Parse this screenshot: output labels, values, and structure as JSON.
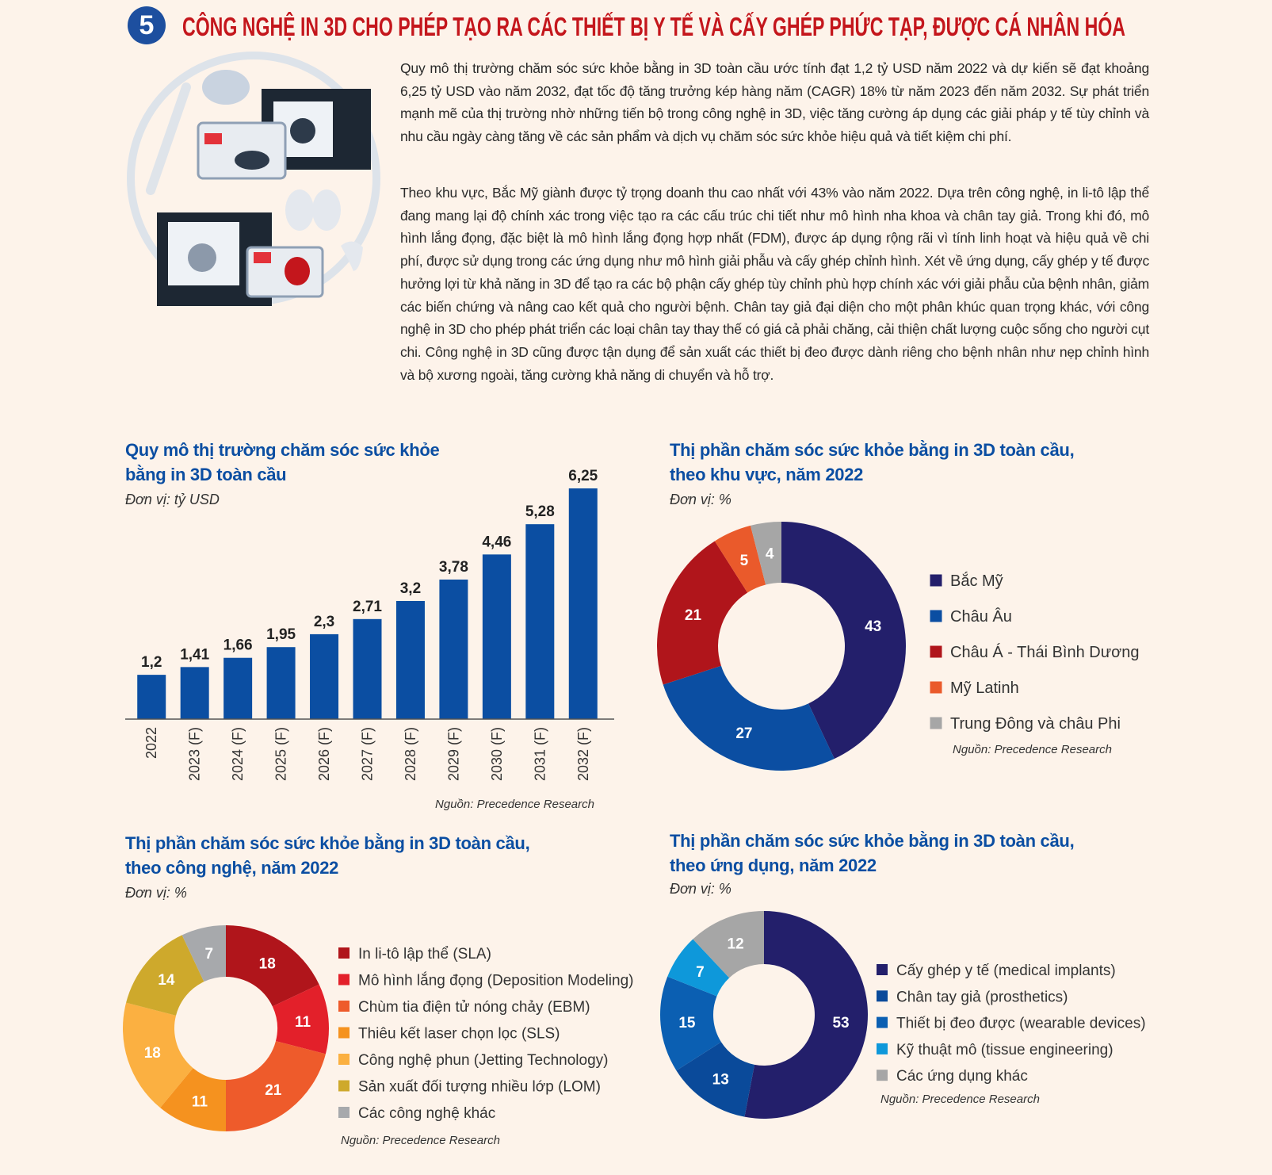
{
  "header": {
    "number": "5",
    "title": "CÔNG NGHỆ IN 3D CHO PHÉP TẠO RA CÁC THIẾT BỊ Y TẾ VÀ CẤY GHÉP PHỨC TẠP, ĐƯỢC CÁ NHÂN HÓA"
  },
  "paragraphs": [
    "Quy mô thị trường chăm sóc sức khỏe bằng in 3D toàn cầu ước tính đạt 1,2 tỷ USD năm 2022 và dự kiến sẽ đạt khoảng 6,25 tỷ USD vào năm 2032, đạt tốc độ tăng trưởng kép hàng năm (CAGR) 18% từ năm 2023 đến năm 2032. Sự phát triển mạnh mẽ của thị trường nhờ những tiến bộ trong công nghệ in 3D, việc tăng cường áp dụng các giải pháp y tế tùy chỉnh và nhu cầu ngày càng tăng về các sản phẩm và dịch vụ chăm sóc sức khỏe hiệu quả và tiết kiệm chi phí.",
    "Theo khu vực, Bắc Mỹ giành được tỷ trọng doanh thu cao nhất với 43% vào năm 2022. Dựa trên công nghệ, in li-tô lập thể đang mang lại độ chính xác trong việc tạo ra các cấu trúc chi tiết như mô hình nha khoa và chân tay giả. Trong khi đó, mô hình lắng đọng, đặc biệt là mô hình lắng đọng hợp nhất (FDM), được áp dụng rộng rãi vì tính linh hoạt và hiệu quả về chi phí, được sử dụng trong các ứng dụng như mô hình giải phẫu và cấy ghép chỉnh hình. Xét về ứng dụng, cấy ghép y tế được hưởng lợi từ khả năng in 3D để tạo ra các bộ phận cấy ghép tùy chỉnh phù hợp chính xác với giải phẫu của bệnh nhân, giảm các biến chứng và nâng cao kết quả cho người bệnh. Chân tay giả đại diện cho một phân khúc quan trọng khác, với công nghệ in 3D cho phép phát triển các loại chân tay thay thế có giá cả phải chăng, cải thiện chất lượng cuộc sống cho người cụt chi. Công nghệ in 3D cũng được tận dụng để sản xuất các thiết bị đeo được dành riêng cho bệnh nhân như nẹp chỉnh hình và bộ xương ngoài, tăng cường khả năng di chuyển và hỗ trợ."
  ],
  "chart_data": [
    {
      "type": "bar",
      "title": "Quy mô thị trường chăm sóc sức khỏe bằng in 3D toàn cầu",
      "subtitle": "Đơn vị: tỷ USD",
      "categories": [
        "2022",
        "2023 (F)",
        "2024 (F)",
        "2025 (F)",
        "2026 (F)",
        "2027 (F)",
        "2028 (F)",
        "2029 (F)",
        "2030 (F)",
        "2031 (F)",
        "2032 (F)"
      ],
      "values": [
        1.2,
        1.41,
        1.66,
        1.95,
        2.3,
        2.71,
        3.2,
        3.78,
        4.46,
        5.28,
        6.25
      ],
      "value_labels": [
        "1,2",
        "1,41",
        "1,66",
        "1,95",
        "2,3",
        "2,71",
        "3,2",
        "3,78",
        "4,46",
        "5,28",
        "6,25"
      ],
      "color": "#0b4ea2",
      "source": "Nguồn: Precedence Research"
    },
    {
      "type": "donut",
      "title": "Thị phần chăm sóc sức khỏe bằng in 3D toàn cầu, theo khu vực, năm 2022",
      "subtitle": "Đơn vị: %",
      "categories": [
        "Bắc Mỹ",
        "Châu Âu",
        "Châu Á - Thái Bình Dương",
        "Mỹ Latinh",
        "Trung Đông và châu Phi"
      ],
      "values": [
        43,
        27,
        21,
        5,
        4
      ],
      "colors": [
        "#231f6b",
        "#0b4ea2",
        "#b0151b",
        "#ea5a2b",
        "#a6a6a6"
      ],
      "source": "Nguồn: Precedence Research"
    },
    {
      "type": "donut",
      "title": "Thị phần chăm sóc sức khỏe bằng in 3D toàn cầu, theo công nghệ, năm 2022",
      "subtitle": "Đơn vị: %",
      "categories": [
        "In li-tô lập thể (SLA)",
        "Mô hình lắng đọng (Deposition Modeling)",
        "Chùm tia điện tử nóng chảy (EBM)",
        "Thiêu kết  laser chọn lọc (SLS)",
        "Công nghệ phun (Jetting Technology)",
        "Sản xuất đối tượng nhiều lớp (LOM)",
        "Các công nghệ khác"
      ],
      "values": [
        18,
        11,
        21,
        11,
        18,
        14,
        7
      ],
      "colors": [
        "#b0151b",
        "#e3202a",
        "#ee5b2b",
        "#f5921f",
        "#fbb041",
        "#cea92c",
        "#a7a9ac"
      ],
      "source": "Nguồn: Precedence Research"
    },
    {
      "type": "donut",
      "title": "Thị phần chăm sóc sức khỏe bằng in 3D toàn cầu, theo ứng dụng, năm 2022",
      "subtitle": "Đơn vị: %",
      "categories": [
        "Cấy ghép y tế (medical implants)",
        "Chân tay giả (prosthetics)",
        "Thiết bị đeo được (wearable devices)",
        "Kỹ thuật mô (tissue engineering)",
        "Các ứng dụng khác"
      ],
      "values": [
        53,
        13,
        15,
        7,
        12
      ],
      "colors": [
        "#231f6b",
        "#0a4a9a",
        "#0b5fb2",
        "#0e98da",
        "#a6a6a6"
      ],
      "source": "Nguồn: Precedence Research"
    }
  ]
}
